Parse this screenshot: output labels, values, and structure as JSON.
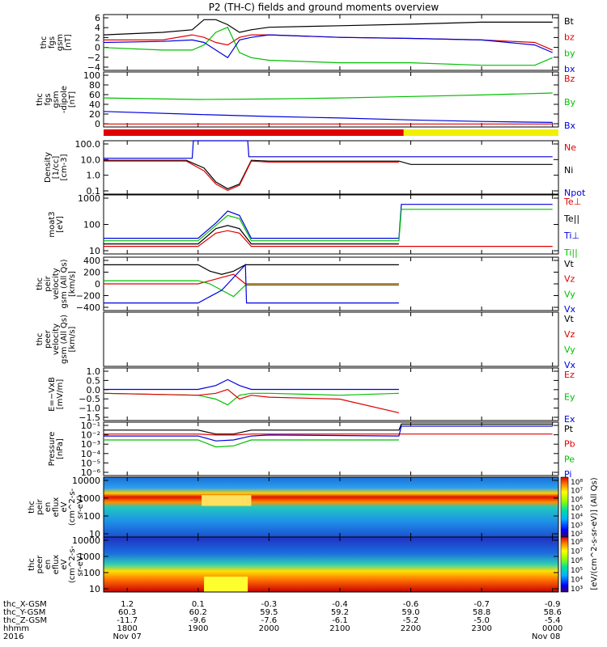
{
  "title": "P2 (TH-C) fields and ground moments overview",
  "colors": {
    "black": "#000000",
    "red": "#e00000",
    "green": "#00c000",
    "blue": "#0000e0",
    "lime": "#20d020",
    "yellow": "#f0f000"
  },
  "bars": {
    "red_until": 2154,
    "yellow_from": 2154
  },
  "xaxis": {
    "rows": [
      {
        "label": "thc_X-GSM",
        "values": [
          "1.2",
          "0.1",
          "-0.3",
          "-0.4",
          "-0.6",
          "-0.7",
          "-0.9"
        ]
      },
      {
        "label": "thc_Y-GSM",
        "values": [
          "60.3",
          "60.2",
          "59.5",
          "59.2",
          "59.0",
          "58.8",
          "58.6"
        ]
      },
      {
        "label": "thc_Z-GSM",
        "values": [
          "-11.7",
          "-9.6",
          "-7.6",
          "-6.1",
          "-5.2",
          "-5.0",
          "-5.4"
        ]
      },
      {
        "label": "hhmm",
        "values": [
          "1800",
          "1900",
          "2000",
          "2100",
          "2200",
          "2300",
          "0000"
        ]
      }
    ],
    "year": "2016",
    "date_start": "Nov 07",
    "date_end": "Nov 08"
  },
  "colorbar": {
    "label": "[eV/(cm^2-s-sr-eV)] (All Qs)",
    "upper_ticks": [
      "10⁸",
      "10⁷",
      "10⁶",
      "10⁵",
      "10⁴",
      "10³",
      "10²"
    ],
    "lower_ticks": [
      "10⁸",
      "10⁷",
      "10⁶",
      "10⁵",
      "10⁴",
      "10³"
    ]
  },
  "panels": [
    {
      "id": "fgs-gsm",
      "ylabel": [
        "thc",
        "fgs",
        "gsm",
        "[nT]"
      ],
      "yticks": [
        "6",
        "4",
        "2",
        "0",
        "−2",
        "−4"
      ],
      "ylim": [
        -4.5,
        6.5
      ],
      "log": false,
      "legend": [
        {
          "name": "Bt",
          "color": "#000000"
        },
        {
          "name": "bz",
          "color": "#e00000"
        },
        {
          "name": "by",
          "color": "#00c000"
        },
        {
          "name": "bx",
          "color": "#0000e0"
        }
      ]
    },
    {
      "id": "fgs-dipole",
      "ylabel": [
        "thc",
        "fgs",
        "gsm",
        "-dipole",
        "[nT]"
      ],
      "yticks": [
        "100",
        "80",
        "60",
        "40",
        "20",
        "0"
      ],
      "ylim": [
        -10,
        100
      ],
      "log": false,
      "legend": [
        {
          "name": "Bz",
          "color": "#e00000"
        },
        {
          "name": "By",
          "color": "#00c000"
        },
        {
          "name": "Bx",
          "color": "#0000e0"
        }
      ]
    },
    {
      "id": "density",
      "ylabel": [
        "Density",
        "[1/cc]",
        "[cm-3]"
      ],
      "yticks": [
        "100.0",
        "10.0",
        "1.0",
        "0.1"
      ],
      "ylim": [
        0.07,
        150
      ],
      "log": true,
      "legend": [
        {
          "name": "Ne",
          "color": "#e00000"
        },
        {
          "name": "Ni",
          "color": "#000000"
        },
        {
          "name": "Npot",
          "color": "#0000e0"
        }
      ]
    },
    {
      "id": "temperature",
      "ylabel": [
        "moat3",
        "[eV]"
      ],
      "yticks": [
        "1000",
        "100",
        "10"
      ],
      "ylim": [
        6,
        1300
      ],
      "log": true,
      "legend": [
        {
          "name": "Te⊥",
          "color": "#e00000"
        },
        {
          "name": "Te||",
          "color": "#000000"
        },
        {
          "name": "Ti⊥",
          "color": "#0000e0"
        },
        {
          "name": "Ti||",
          "color": "#00c000"
        }
      ]
    },
    {
      "id": "peir-velocity",
      "ylabel": [
        "thc",
        "peir",
        "velocity",
        "gsm (All Qs)",
        "[km/s]"
      ],
      "yticks": [
        "400",
        "200",
        "0",
        "−200",
        "−400"
      ],
      "ylim": [
        -420,
        420
      ],
      "log": false,
      "legend": [
        {
          "name": "Vt",
          "color": "#000000"
        },
        {
          "name": "Vz",
          "color": "#e00000"
        },
        {
          "name": "Vy",
          "color": "#00c000"
        },
        {
          "name": "Vx",
          "color": "#0000e0"
        }
      ]
    },
    {
      "id": "peer-velocity",
      "ylabel": [
        "thc",
        "peer",
        "velocity",
        "gsm (All Qs)",
        "[km/s]"
      ],
      "yticks": [],
      "ylim": [
        0,
        1
      ],
      "log": false,
      "legend": [
        {
          "name": "Vt",
          "color": "#000000"
        },
        {
          "name": "Vz",
          "color": "#e00000"
        },
        {
          "name": "Vy",
          "color": "#00c000"
        },
        {
          "name": "Vx",
          "color": "#0000e0"
        }
      ]
    },
    {
      "id": "efield",
      "ylabel": [
        "E=−VxB",
        "[mV/m]"
      ],
      "yticks": [
        "1.0",
        "0.5",
        "0.0",
        "−0.5",
        "−1.0",
        "−1.5"
      ],
      "ylim": [
        -1.6,
        1.1
      ],
      "log": false,
      "legend": [
        {
          "name": "Ez",
          "color": "#e00000"
        },
        {
          "name": "Ey",
          "color": "#00c000"
        },
        {
          "name": "Ex",
          "color": "#0000e0"
        }
      ]
    },
    {
      "id": "pressure",
      "ylabel": [
        "Pressure",
        "[nPa]"
      ],
      "yticks": [
        "10⁻¹",
        "10⁻²",
        "10⁻³",
        "10⁻⁴",
        "10⁻⁵",
        "10⁻⁶"
      ],
      "ylim": [
        -6.2,
        -0.8
      ],
      "log": false,
      "legend": [
        {
          "name": "Pt",
          "color": "#000000"
        },
        {
          "name": "Pb",
          "color": "#e00000"
        },
        {
          "name": "Pe",
          "color": "#00c000"
        },
        {
          "name": "Pi",
          "color": "#0000e0"
        }
      ]
    },
    {
      "id": "peir-spec",
      "ylabel": [
        "thc",
        "peir",
        "en",
        "eflux",
        "eV",
        "(cm^2-s-",
        "sr-eV)"
      ],
      "yticks": [
        "10000",
        "1000",
        "100",
        "10"
      ],
      "ylim": [
        0.7,
        4.3
      ],
      "log": false,
      "legend": []
    },
    {
      "id": "peer-spec",
      "ylabel": [
        "thc",
        "peer",
        "en",
        "eflux",
        "eV",
        "(cm^2-s-",
        "sr-eV)"
      ],
      "yticks": [
        "10000",
        "1000",
        "100",
        "10"
      ],
      "ylim": [
        0.7,
        4.3
      ],
      "log": false,
      "legend": []
    }
  ],
  "chart_data": {
    "type": "line",
    "title": "P2 (TH-C) fields and ground moments overview",
    "x_unit": "hhmm (UT)",
    "x_range": [
      "2016-11-07 17:40",
      "2016-11-08 00:05"
    ],
    "series": [
      {
        "panel": "fgs-gsm",
        "name": "Bt",
        "x": [
          1740,
          1830,
          1855,
          1905,
          1915,
          1925,
          1935,
          1945,
          2000,
          2100,
          2200,
          2300,
          2345,
          2400
        ],
        "values": [
          2.5,
          3,
          3.5,
          5.5,
          5.5,
          4.5,
          3,
          3.5,
          4,
          4.3,
          4.6,
          5,
          5,
          5
        ]
      },
      {
        "panel": "fgs-gsm",
        "name": "bz",
        "x": [
          1740,
          1830,
          1855,
          1905,
          1915,
          1925,
          1935,
          1945,
          2000,
          2100,
          2200,
          2300,
          2345,
          2400
        ],
        "values": [
          1.5,
          1.5,
          2.5,
          2,
          1,
          0.5,
          2,
          2.5,
          2.5,
          2,
          1.8,
          1.5,
          1,
          -0.5
        ]
      },
      {
        "panel": "fgs-gsm",
        "name": "by",
        "x": [
          1740,
          1830,
          1855,
          1905,
          1915,
          1925,
          1935,
          1945,
          2000,
          2100,
          2200,
          2300,
          2345,
          2400
        ],
        "values": [
          0,
          -0.5,
          -0.5,
          0.5,
          3,
          4,
          -1,
          -2,
          -2.5,
          -3,
          -3,
          -3.5,
          -3.5,
          -2
        ]
      },
      {
        "panel": "fgs-gsm",
        "name": "bx",
        "x": [
          1740,
          1830,
          1855,
          1905,
          1915,
          1925,
          1935,
          1945,
          2000,
          2100,
          2200,
          2300,
          2345,
          2400
        ],
        "values": [
          1,
          1.2,
          1.5,
          1,
          -0.5,
          -2,
          1.5,
          2,
          2.5,
          2,
          1.8,
          1.5,
          0.5,
          -1
        ]
      },
      {
        "panel": "fgs-dipole",
        "name": "By",
        "x": [
          1740,
          1900,
          2000,
          2100,
          2200,
          2300,
          2400
        ],
        "values": [
          48,
          45,
          46,
          48,
          51,
          54,
          58
        ]
      },
      {
        "panel": "fgs-dipole",
        "name": "Bx",
        "x": [
          1740,
          1900,
          2000,
          2100,
          2200,
          2300,
          2400
        ],
        "values": [
          21,
          15,
          11,
          8,
          4,
          1,
          -1
        ]
      },
      {
        "panel": "fgs-dipole",
        "name": "Bz",
        "x": [
          1740,
          2400
        ],
        "values": [
          -4,
          -4
        ]
      },
      {
        "panel": "density",
        "name": "Ni",
        "x": [
          1740,
          1850,
          1905,
          1915,
          1925,
          1935,
          1945,
          2000,
          2100,
          2150,
          2200,
          2300,
          2400
        ],
        "values": [
          9,
          9,
          3,
          0.4,
          0.15,
          0.3,
          9,
          8,
          8,
          8,
          5,
          5,
          5
        ]
      },
      {
        "panel": "density",
        "name": "Ne",
        "x": [
          1740,
          1850,
          1905,
          1915,
          1925,
          1935,
          1945,
          2000,
          2100,
          2150,
          2200,
          2300,
          2400
        ],
        "values": [
          8,
          8,
          2,
          0.3,
          0.12,
          0.25,
          8,
          7,
          7,
          7,
          null,
          null,
          null
        ]
      },
      {
        "panel": "density",
        "name": "Npot",
        "x": [
          1740,
          1855,
          1856,
          1942,
          1943,
          2400
        ],
        "values": [
          12,
          12,
          150,
          150,
          15,
          15
        ]
      },
      {
        "panel": "temperature",
        "name": "Ti⊥",
        "x": [
          1740,
          1900,
          1915,
          1925,
          1935,
          1945,
          2000,
          2150,
          2152,
          2400
        ],
        "values": [
          25,
          25,
          100,
          300,
          200,
          25,
          25,
          25,
          550,
          550
        ]
      },
      {
        "panel": "temperature",
        "name": "Ti||",
        "x": [
          1740,
          1900,
          1915,
          1925,
          1935,
          1945,
          2000,
          2150,
          2152,
          2400
        ],
        "values": [
          20,
          20,
          80,
          200,
          150,
          20,
          20,
          20,
          350,
          350
        ]
      },
      {
        "panel": "temperature",
        "name": "Te||",
        "x": [
          1740,
          1900,
          1915,
          1925,
          1935,
          1945,
          2000,
          2150,
          2400
        ],
        "values": [
          15,
          15,
          60,
          80,
          60,
          15,
          15,
          15,
          null
        ]
      },
      {
        "panel": "temperature",
        "name": "Te⊥",
        "x": [
          1740,
          1900,
          1915,
          1925,
          1935,
          1945,
          2000,
          2150,
          2152,
          2400
        ],
        "values": [
          12,
          12,
          40,
          50,
          40,
          12,
          12,
          12,
          12,
          12
        ]
      },
      {
        "panel": "peir-velocity",
        "name": "Vt",
        "x": [
          1740,
          1900,
          1910,
          1920,
          1930,
          1940,
          2000,
          2150
        ],
        "values": [
          300,
          300,
          200,
          150,
          200,
          300,
          300,
          300
        ]
      },
      {
        "panel": "peir-velocity",
        "name": "Vz",
        "x": [
          1740,
          1900,
          1910,
          1920,
          1930,
          1940,
          2000,
          2150
        ],
        "values": [
          0,
          0,
          50,
          100,
          150,
          0,
          0,
          0
        ]
      },
      {
        "panel": "peir-velocity",
        "name": "Vy",
        "x": [
          1740,
          1900,
          1910,
          1920,
          1930,
          1940,
          2000,
          2150
        ],
        "values": [
          50,
          50,
          0,
          -100,
          -200,
          -20,
          -20,
          -20
        ]
      },
      {
        "panel": "peir-velocity",
        "name": "Vx",
        "x": [
          1740,
          1900,
          1910,
          1920,
          1930,
          1940,
          1941,
          2150
        ],
        "values": [
          -300,
          -300,
          -200,
          -100,
          100,
          300,
          -300,
          -300
        ]
      },
      {
        "panel": "efield",
        "name": "Ex",
        "x": [
          1740,
          1900,
          1915,
          1925,
          1935,
          1945,
          2000,
          2100,
          2150
        ],
        "values": [
          0,
          0,
          0.2,
          0.5,
          0.2,
          0,
          0,
          0,
          0
        ]
      },
      {
        "panel": "efield",
        "name": "Ey",
        "x": [
          1740,
          1900,
          1915,
          1925,
          1935,
          1945,
          2000,
          2100,
          2150
        ],
        "values": [
          -0.2,
          -0.3,
          -0.5,
          -0.8,
          -0.3,
          -0.2,
          -0.2,
          -0.3,
          -0.2
        ]
      },
      {
        "panel": "efield",
        "name": "Ez",
        "x": [
          1740,
          1900,
          1915,
          1925,
          1935,
          1945,
          2000,
          2100,
          2150
        ],
        "values": [
          -0.2,
          -0.3,
          -0.2,
          0,
          -0.5,
          -0.3,
          -0.4,
          -0.5,
          -1.2
        ]
      },
      {
        "panel": "pressure",
        "name": "Pt",
        "x": [
          1740,
          1900,
          1915,
          1930,
          1945,
          2000,
          2150,
          2152,
          2400
        ],
        "values": [
          -1.6,
          -1.6,
          -2,
          -2,
          -1.6,
          -1.6,
          -1.6,
          -1,
          -1
        ]
      },
      {
        "panel": "pressure",
        "name": "Pb",
        "x": [
          1740,
          1900,
          1915,
          1930,
          1945,
          2000,
          2150,
          2152,
          2400
        ],
        "values": [
          -2,
          -2,
          -2.1,
          -2.1,
          -2,
          -2,
          -2,
          -2,
          -2
        ]
      },
      {
        "panel": "pressure",
        "name": "Pi",
        "x": [
          1740,
          1900,
          1915,
          1930,
          1945,
          2000,
          2150,
          2152,
          2400
        ],
        "values": [
          -2.2,
          -2.2,
          -2.7,
          -2.6,
          -2.2,
          -2.1,
          -2.2,
          -1.2,
          -1.2
        ]
      },
      {
        "panel": "pressure",
        "name": "Pe",
        "x": [
          1740,
          1900,
          1915,
          1930,
          1945,
          2000,
          2150
        ],
        "values": [
          -2.6,
          -2.6,
          -3.3,
          -3.2,
          -2.6,
          -2.6,
          -2.6
        ]
      }
    ]
  }
}
